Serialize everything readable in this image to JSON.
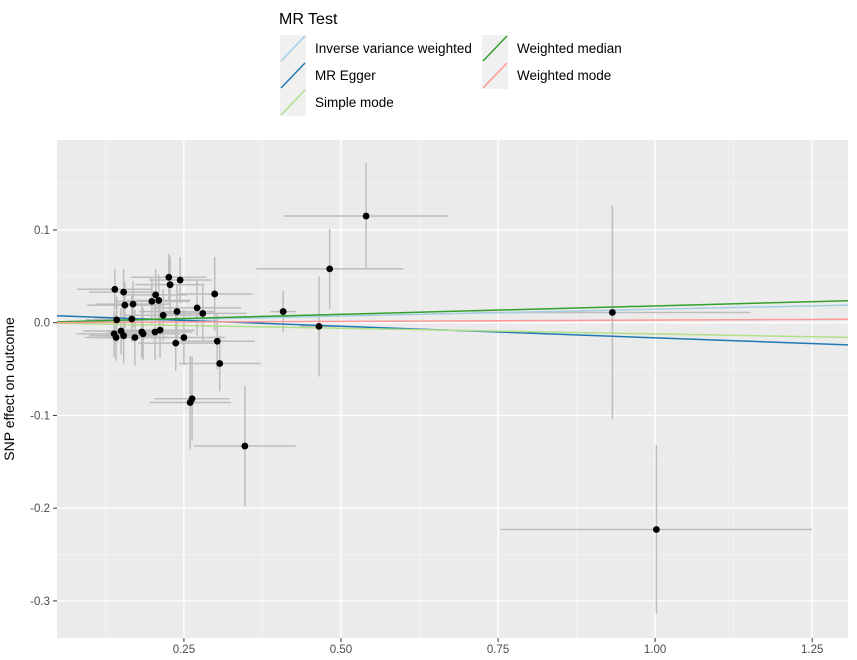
{
  "chart_data": {
    "type": "scatter",
    "title": "",
    "xlabel": "",
    "ylabel": "SNP effect on outcome",
    "xlim": [
      0.048,
      1.307
    ],
    "ylim": [
      -0.34,
      0.197
    ],
    "grid": true,
    "x_ticks": [
      0.25,
      0.5,
      0.75,
      1.0,
      1.25
    ],
    "x_tick_labels": [
      "0.25",
      "0.50",
      "0.75",
      "1.00",
      "1.25"
    ],
    "y_ticks": [
      0.1,
      0.0,
      -0.1,
      -0.2,
      -0.3
    ],
    "y_tick_labels": [
      "0.1",
      "0.0",
      "-0.1",
      "-0.2",
      "-0.3"
    ],
    "legend": {
      "title": "MR Test",
      "placement": "top",
      "entries": [
        {
          "label": "Inverse variance weighted",
          "color": "#a6cee3"
        },
        {
          "label": "MR Egger",
          "color": "#1f78b4"
        },
        {
          "label": "Simple mode",
          "color": "#b2df8a"
        },
        {
          "label": "Weighted median",
          "color": "#33a02c"
        },
        {
          "label": "Weighted mode",
          "color": "#fb9a99"
        }
      ]
    },
    "lines": [
      {
        "name": "Inverse variance weighted",
        "intercept": 0,
        "slope": 0.0145,
        "color": "#a6cee3"
      },
      {
        "name": "MR Egger",
        "intercept": 0.0087,
        "slope": -0.025,
        "color": "#1f78b4"
      },
      {
        "name": "Simple mode",
        "intercept": 0,
        "slope": -0.0121,
        "color": "#b2df8a"
      },
      {
        "name": "Weighted median",
        "intercept": 0,
        "slope": 0.0181,
        "color": "#33a02c"
      },
      {
        "name": "Weighted mode",
        "intercept": 0,
        "slope": 0.0028,
        "color": "#fb9a99"
      }
    ],
    "points": [
      {
        "x": 0.54,
        "y": 0.115,
        "xerr": 0.131,
        "yerr": 0.057
      },
      {
        "x": 0.482,
        "y": 0.058,
        "xerr": 0.117,
        "yerr": 0.043
      },
      {
        "x": 0.408,
        "y": 0.012,
        "xerr": 0.02,
        "yerr": 0.022
      },
      {
        "x": 0.465,
        "y": -0.004,
        "xerr": 0.03,
        "yerr": 0.054
      },
      {
        "x": 0.347,
        "y": -0.133,
        "xerr": 0.081,
        "yerr": 0.065
      },
      {
        "x": 0.932,
        "y": 0.011,
        "xerr": 0.22,
        "yerr": 0.115
      },
      {
        "x": 1.002,
        "y": -0.223,
        "xerr": 0.248,
        "yerr": 0.091
      },
      {
        "x": 0.226,
        "y": 0.049,
        "xerr": 0.06,
        "yerr": 0.025
      },
      {
        "x": 0.228,
        "y": 0.041,
        "xerr": 0.055,
        "yerr": 0.03
      },
      {
        "x": 0.244,
        "y": 0.046,
        "xerr": 0.05,
        "yerr": 0.025
      },
      {
        "x": 0.14,
        "y": 0.036,
        "xerr": 0.06,
        "yerr": 0.022
      },
      {
        "x": 0.154,
        "y": 0.033,
        "xerr": 0.055,
        "yerr": 0.025
      },
      {
        "x": 0.299,
        "y": 0.031,
        "xerr": 0.06,
        "yerr": 0.04
      },
      {
        "x": 0.205,
        "y": 0.03,
        "xerr": 0.05,
        "yerr": 0.028
      },
      {
        "x": 0.199,
        "y": 0.023,
        "xerr": 0.06,
        "yerr": 0.025
      },
      {
        "x": 0.21,
        "y": 0.024,
        "xerr": 0.05,
        "yerr": 0.028
      },
      {
        "x": 0.156,
        "y": 0.019,
        "xerr": 0.06,
        "yerr": 0.025
      },
      {
        "x": 0.169,
        "y": 0.02,
        "xerr": 0.06,
        "yerr": 0.025
      },
      {
        "x": 0.271,
        "y": 0.016,
        "xerr": 0.07,
        "yerr": 0.03
      },
      {
        "x": 0.28,
        "y": 0.01,
        "xerr": 0.07,
        "yerr": 0.03
      },
      {
        "x": 0.239,
        "y": 0.012,
        "xerr": 0.06,
        "yerr": 0.03
      },
      {
        "x": 0.217,
        "y": 0.008,
        "xerr": 0.06,
        "yerr": 0.028
      },
      {
        "x": 0.167,
        "y": 0.004,
        "xerr": 0.06,
        "yerr": 0.025
      },
      {
        "x": 0.143,
        "y": 0.003,
        "xerr": 0.05,
        "yerr": 0.025
      },
      {
        "x": 0.139,
        "y": -0.012,
        "xerr": 0.06,
        "yerr": 0.025
      },
      {
        "x": 0.15,
        "y": -0.009,
        "xerr": 0.06,
        "yerr": 0.025
      },
      {
        "x": 0.154,
        "y": -0.014,
        "xerr": 0.055,
        "yerr": 0.03
      },
      {
        "x": 0.142,
        "y": -0.016,
        "xerr": 0.05,
        "yerr": 0.025
      },
      {
        "x": 0.172,
        "y": -0.016,
        "xerr": 0.055,
        "yerr": 0.03
      },
      {
        "x": 0.183,
        "y": -0.01,
        "xerr": 0.055,
        "yerr": 0.028
      },
      {
        "x": 0.185,
        "y": -0.012,
        "xerr": 0.06,
        "yerr": 0.028
      },
      {
        "x": 0.204,
        "y": -0.01,
        "xerr": 0.06,
        "yerr": 0.03
      },
      {
        "x": 0.212,
        "y": -0.008,
        "xerr": 0.055,
        "yerr": 0.03
      },
      {
        "x": 0.237,
        "y": -0.022,
        "xerr": 0.06,
        "yerr": 0.03
      },
      {
        "x": 0.25,
        "y": -0.016,
        "xerr": 0.065,
        "yerr": 0.03
      },
      {
        "x": 0.303,
        "y": -0.02,
        "xerr": 0.06,
        "yerr": 0.03
      },
      {
        "x": 0.307,
        "y": -0.044,
        "xerr": 0.065,
        "yerr": 0.03
      },
      {
        "x": 0.263,
        "y": -0.082,
        "xerr": 0.06,
        "yerr": 0.045
      },
      {
        "x": 0.26,
        "y": -0.086,
        "xerr": 0.065,
        "yerr": 0.05
      }
    ]
  }
}
